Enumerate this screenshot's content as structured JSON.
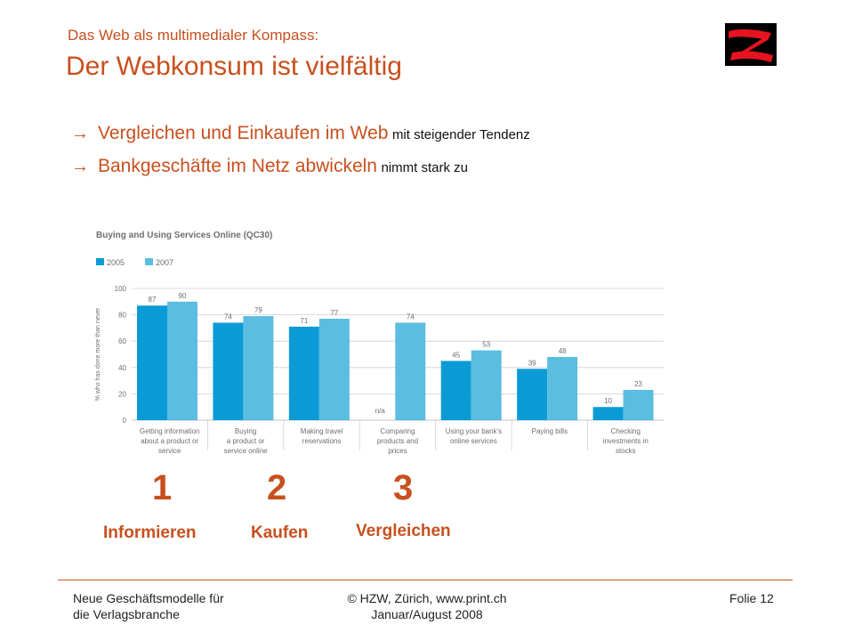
{
  "header": {
    "subtitle": "Das Web als multimedialer Kompass:",
    "title": "Der Webkonsum ist vielfältig"
  },
  "logo": {
    "icon": "hzw-logo-icon",
    "colors": {
      "background": "#000000",
      "mark": "#e5141e"
    }
  },
  "bullets": [
    {
      "icon": "arrow-right-icon",
      "arrow": "→",
      "main": "Vergleichen und Einkaufen im Web",
      "small": "mit steigender Tendenz"
    },
    {
      "icon": "arrow-right-icon",
      "arrow": "→",
      "main": "Bankgeschäfte im Netz abwickeln",
      "small": "nimmt stark zu"
    }
  ],
  "chart_data": {
    "type": "bar",
    "title": "Buying and Using Services Online (QC30)",
    "ylabel": "% who has done more than never",
    "ylim": [
      0,
      100
    ],
    "yticks": [
      "0",
      "20",
      "40",
      "60",
      "80",
      "100"
    ],
    "grid": true,
    "legend_placement": "top-left",
    "categories": [
      [
        "Getting information",
        "about a product or",
        "service"
      ],
      [
        "Buying",
        "a product or",
        "service online"
      ],
      [
        "Making travel",
        "reservations"
      ],
      [
        "Comparing",
        "products and",
        "prices"
      ],
      [
        "Using your bank's",
        "online services"
      ],
      [
        "Paying bills"
      ],
      [
        "Checking",
        "investments in",
        "stocks"
      ]
    ],
    "series": [
      {
        "name": "2005",
        "color": "#0a9bd7",
        "values": [
          87,
          74,
          71,
          null,
          45,
          39,
          10
        ]
      },
      {
        "name": "2007",
        "color": "#5bbde0",
        "values": [
          90,
          79,
          77,
          74,
          53,
          48,
          23
        ]
      }
    ],
    "missing_label": "n/a"
  },
  "annotations": [
    {
      "number": "1",
      "label": "Informieren"
    },
    {
      "number": "2",
      "label": "Kaufen"
    },
    {
      "number": "3",
      "label": "Vergleichen"
    }
  ],
  "footer": {
    "left": [
      "Neue Geschäftsmodelle für",
      "die Verlagsbranche"
    ],
    "center": [
      "© HZW, Zürich, www.print.ch",
      "Januar/August 2008"
    ],
    "right": "Folie 12"
  },
  "colors": {
    "accent": "#c8501e"
  }
}
